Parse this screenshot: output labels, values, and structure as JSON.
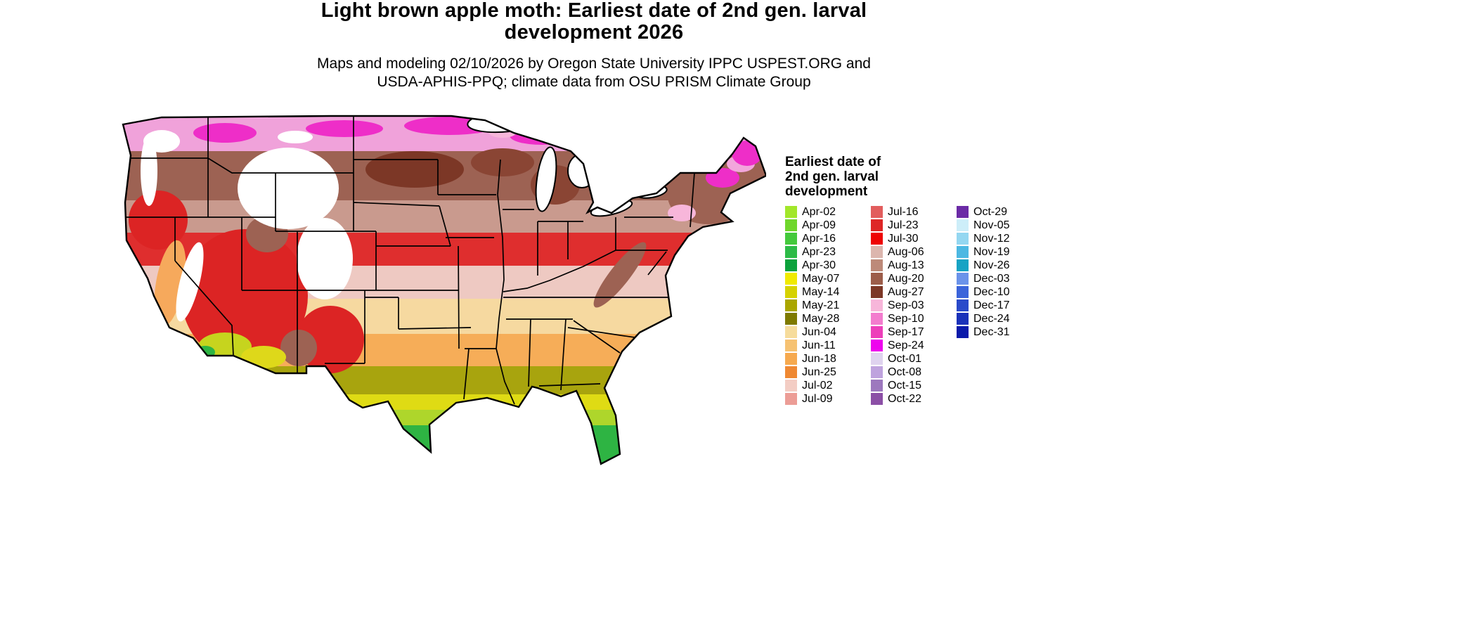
{
  "title_line1": "Light brown apple moth: Earliest date of 2nd gen. larval",
  "title_line2": "development 2026",
  "subtitle_line1": "Maps and modeling 02/10/2026 by Oregon State University IPPC USPEST.ORG and",
  "subtitle_line2": "USDA-APHIS-PPQ; climate data from OSU PRISM Climate Group",
  "legend": {
    "title": "Earliest date of 2nd gen. larval development",
    "columns": [
      [
        {
          "label": "Apr-02",
          "color": "#a2e72a"
        },
        {
          "label": "Apr-09",
          "color": "#6fd62c"
        },
        {
          "label": "Apr-16",
          "color": "#44c93c"
        },
        {
          "label": "Apr-23",
          "color": "#2dbb47"
        },
        {
          "label": "Apr-30",
          "color": "#0ca23c"
        },
        {
          "label": "May-07",
          "color": "#f0ea00"
        },
        {
          "label": "May-14",
          "color": "#d6d200"
        },
        {
          "label": "May-21",
          "color": "#aaa600"
        },
        {
          "label": "May-28",
          "color": "#7e7a00"
        },
        {
          "label": "Jun-04",
          "color": "#f6dc9c"
        },
        {
          "label": "Jun-11",
          "color": "#f6c272"
        },
        {
          "label": "Jun-18",
          "color": "#f6a94e"
        },
        {
          "label": "Jun-25",
          "color": "#ef8832"
        },
        {
          "label": "Jul-02",
          "color": "#f3cdc4"
        },
        {
          "label": "Jul-09",
          "color": "#ec9d96"
        }
      ],
      [
        {
          "label": "Jul-16",
          "color": "#e25d5d"
        },
        {
          "label": "Jul-23",
          "color": "#de2626"
        },
        {
          "label": "Jul-30",
          "color": "#ee0404"
        },
        {
          "label": "Aug-06",
          "color": "#dcb6ae"
        },
        {
          "label": "Aug-13",
          "color": "#bd8a79"
        },
        {
          "label": "Aug-20",
          "color": "#9c5d4a"
        },
        {
          "label": "Aug-27",
          "color": "#7c3726"
        },
        {
          "label": "Sep-03",
          "color": "#f7b6da"
        },
        {
          "label": "Sep-10",
          "color": "#f37cce"
        },
        {
          "label": "Sep-17",
          "color": "#ed3fba"
        },
        {
          "label": "Sep-24",
          "color": "#ee04ee"
        },
        {
          "label": "Oct-01",
          "color": "#dfd3ef"
        },
        {
          "label": "Oct-08",
          "color": "#bfa3de"
        },
        {
          "label": "Oct-15",
          "color": "#9d78be"
        },
        {
          "label": "Oct-22",
          "color": "#8c4fa6"
        }
      ],
      [
        {
          "label": "Oct-29",
          "color": "#6b2ba6"
        },
        {
          "label": "Nov-05",
          "color": "#cdeef9"
        },
        {
          "label": "Nov-12",
          "color": "#94d7f1"
        },
        {
          "label": "Nov-19",
          "color": "#4cb8e2"
        },
        {
          "label": "Nov-26",
          "color": "#17a3c4"
        },
        {
          "label": "Dec-03",
          "color": "#6b93ea"
        },
        {
          "label": "Dec-10",
          "color": "#3b64da"
        },
        {
          "label": "Dec-17",
          "color": "#2a4aca"
        },
        {
          "label": "Dec-24",
          "color": "#1a32ba"
        },
        {
          "label": "Dec-31",
          "color": "#0a1aaa"
        }
      ]
    ]
  }
}
